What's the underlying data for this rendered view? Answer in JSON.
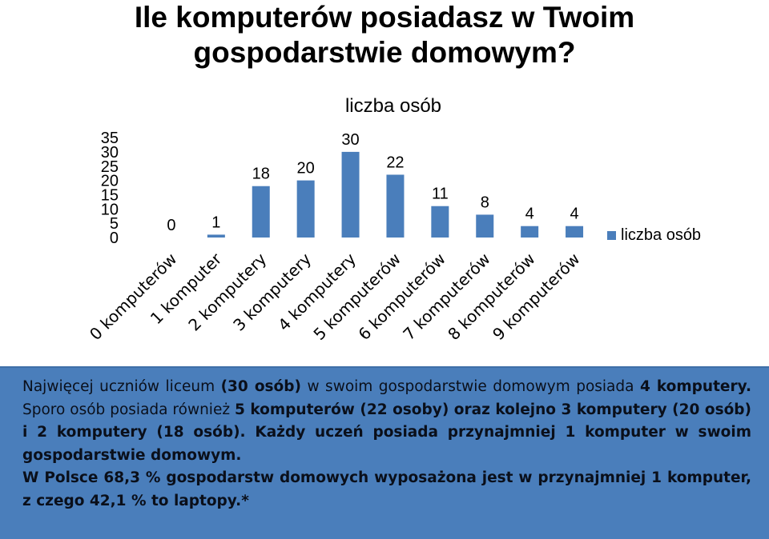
{
  "slide_title": "Ile komputerów posiadasz w Twoim gospodarstwie domowym?",
  "colors": {
    "bar": "#4a7ebb",
    "panel": "#4a7ebb",
    "text": "#000000"
  },
  "chart_data": {
    "type": "bar",
    "title": "liczba osób",
    "categories": [
      "0 komputerów",
      "1 komputer",
      "2 komputery",
      "3 komputery",
      "4 komputery",
      "5 komputerów",
      "6 komputerów",
      "7 komputerów",
      "8 komputerów",
      "9 komputerów"
    ],
    "series": [
      {
        "name": "liczba osób",
        "values": [
          0,
          1,
          18,
          20,
          30,
          22,
          11,
          8,
          4,
          4
        ]
      }
    ],
    "ylim": [
      0,
      35
    ],
    "yticks": [
      "0",
      "5",
      "10",
      "15",
      "20",
      "25",
      "30",
      "35"
    ],
    "legend_position": "right",
    "data_labels": true,
    "grid": false,
    "xlabel": "",
    "ylabel": ""
  },
  "summary": {
    "p1_s1": "Najwięcej uczniów liceum ",
    "p1_s2": "(30 osób)",
    "p1_s3": " w swoim gospodarstwie domowym posiada ",
    "p1_s4": "4 komputery.",
    "p1_s5": " Sporo osób posiada również ",
    "p1_s6": "5 komputerów (22 osoby) oraz kolejno 3 komputery (20 osób) i 2 komputery (18 osób). Każdy uczeń posiada przynajmniej 1 komputer w swoim gospodarstwie domowym.",
    "p2": "W Polsce 68,3 % gospodarstw domowych wyposażona jest w przynajmniej 1 komputer, z czego 42,1 % to laptopy.*"
  }
}
